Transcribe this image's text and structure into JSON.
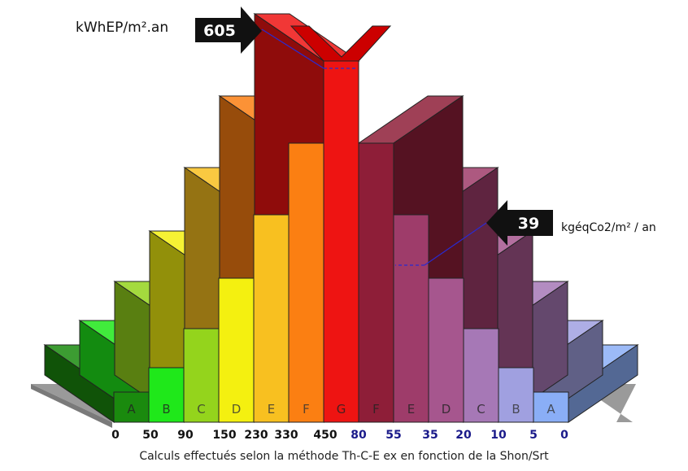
{
  "chart_data": {
    "type": "bar",
    "energy": {
      "unit": "kWhEP/m².an",
      "value": "605",
      "classes": [
        "A",
        "B",
        "C",
        "D",
        "E",
        "F",
        "G"
      ],
      "thresholds": [
        "0",
        "50",
        "90",
        "150",
        "230",
        "330",
        "450"
      ],
      "colors": [
        "#1a8a0e",
        "#1fe81a",
        "#94d41c",
        "#f4f010",
        "#f8c020",
        "#fb7f12",
        "#ee1412"
      ]
    },
    "ghg": {
      "unit": "kgéqCo2/m² / an",
      "value": "39",
      "classes": [
        "G",
        "F",
        "E",
        "D",
        "C",
        "B",
        "A"
      ],
      "thresholds": [
        "80",
        "55",
        "35",
        "20",
        "10",
        "5",
        "0"
      ],
      "colors": [
        "#ee1412",
        "#8e1e38",
        "#9e3c6a",
        "#a6568e",
        "#a678b6",
        "#a0a0e0",
        "#8aaef6"
      ]
    },
    "caption": "Calculs effectués selon la méthode Th-C-E ex en fonction de la Shon/Srt"
  }
}
